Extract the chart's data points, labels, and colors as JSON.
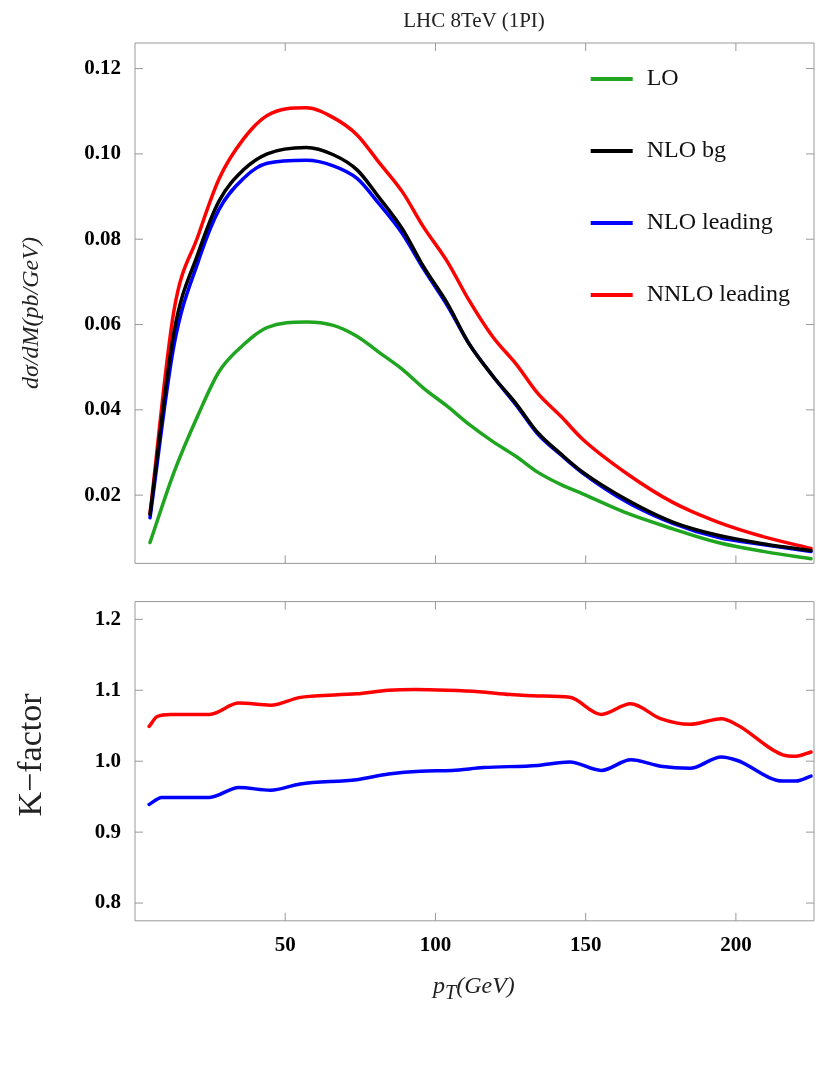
{
  "chart_data": [
    {
      "type": "line",
      "title": "LHC 8TeV (1PI)",
      "ylabel": "dσ/dM(pb/GeV)",
      "xlim": [
        0,
        226
      ],
      "xticks": [
        50,
        100,
        150,
        200
      ],
      "ylim": [
        0.004,
        0.126
      ],
      "yticks": [
        {
          "value": 0.02,
          "label": "0.02"
        },
        {
          "value": 0.04,
          "label": "0.04"
        },
        {
          "value": 0.06,
          "label": "0.06"
        },
        {
          "value": 0.08,
          "label": "0.08"
        },
        {
          "value": 0.1,
          "label": "0.10"
        },
        {
          "value": 0.12,
          "label": "0.12"
        }
      ],
      "tick_labels": "y",
      "legend": "top right",
      "marker": "none",
      "grid": false,
      "series": [
        {
          "name": "LO",
          "color": "#1fa51f",
          "x": [
            5,
            13,
            21,
            28,
            36,
            44,
            57,
            66,
            74,
            81,
            89,
            96,
            104,
            111,
            119,
            127,
            134,
            142,
            149,
            164,
            179,
            194,
            210,
            225
          ],
          "values": [
            0.0089,
            0.0254,
            0.0388,
            0.049,
            0.0552,
            0.0593,
            0.0606,
            0.0598,
            0.0572,
            0.0536,
            0.0495,
            0.0451,
            0.0408,
            0.0367,
            0.0326,
            0.029,
            0.0254,
            0.0224,
            0.0203,
            0.0157,
            0.0121,
            0.0089,
            0.0067,
            0.0051
          ]
        },
        {
          "name": "NLO bg",
          "color": "#000000",
          "x": [
            5,
            13,
            21,
            28,
            36,
            44,
            57,
            66,
            74,
            81,
            89,
            96,
            104,
            111,
            119,
            127,
            134,
            142,
            149,
            164,
            179,
            194,
            210,
            225
          ],
          "values": [
            0.0155,
            0.0583,
            0.0767,
            0.089,
            0.0962,
            0.1,
            0.1015,
            0.0998,
            0.0962,
            0.09,
            0.0824,
            0.0736,
            0.0649,
            0.0557,
            0.048,
            0.0413,
            0.0347,
            0.0295,
            0.0254,
            0.0188,
            0.0137,
            0.0106,
            0.0085,
            0.007
          ]
        },
        {
          "name": "NLO leading",
          "color": "#0000ff",
          "x": [
            5,
            13,
            21,
            28,
            36,
            44,
            57,
            66,
            74,
            81,
            89,
            96,
            104,
            111,
            119,
            127,
            134,
            142,
            149,
            164,
            179,
            194,
            210,
            225
          ],
          "values": [
            0.0147,
            0.0552,
            0.0747,
            0.087,
            0.0942,
            0.0978,
            0.0985,
            0.0972,
            0.0942,
            0.0885,
            0.0813,
            0.0731,
            0.0644,
            0.0557,
            0.048,
            0.041,
            0.0344,
            0.0293,
            0.0252,
            0.0183,
            0.0134,
            0.0101,
            0.0083,
            0.0068
          ]
        },
        {
          "name": "NNLO leading",
          "color": "#ff0000",
          "x": [
            5,
            13,
            21,
            28,
            36,
            44,
            57,
            66,
            74,
            81,
            89,
            96,
            104,
            111,
            119,
            127,
            134,
            142,
            149,
            164,
            179,
            194,
            210,
            225
          ],
          "values": [
            0.0157,
            0.0634,
            0.0808,
            0.0942,
            0.1034,
            0.109,
            0.1108,
            0.1085,
            0.1044,
            0.0982,
            0.0911,
            0.0829,
            0.0747,
            0.0659,
            0.0572,
            0.0506,
            0.0439,
            0.0383,
            0.0331,
            0.0249,
            0.0183,
            0.0137,
            0.0101,
            0.0075
          ]
        }
      ]
    },
    {
      "type": "line",
      "xlabel": "p$_{T}$(GeV)",
      "ylabel": "K−factor",
      "xlim": [
        0,
        226
      ],
      "xticks": [
        50,
        100,
        150,
        200
      ],
      "ylim": [
        0.775,
        1.225
      ],
      "yticks": [
        {
          "value": 0.8,
          "label": "0.8"
        },
        {
          "value": 0.9,
          "label": "0.9"
        },
        {
          "value": 1.0,
          "label": "1.0"
        },
        {
          "value": 1.1,
          "label": "1.1"
        },
        {
          "value": 1.2,
          "label": "1.2"
        }
      ],
      "marker": "none",
      "grid": false,
      "series": [
        {
          "color": "#0000ff",
          "x": [
            4.7,
            8.9,
            24.8,
            34.6,
            45.1,
            55,
            73.8,
            84.4,
            95,
            105.5,
            116,
            134,
            144.7,
            155.2,
            165,
            174.9,
            184.7,
            195.2,
            200.5,
            215.6,
            220,
            225
          ],
          "values": [
            0.939,
            0.949,
            0.949,
            0.963,
            0.959,
            0.968,
            0.974,
            0.982,
            0.986,
            0.987,
            0.991,
            0.994,
            0.999,
            0.987,
            1.002,
            0.993,
            0.99,
            1.006,
            1.001,
            0.972,
            0.972,
            0.979
          ]
        },
        {
          "color": "#ff0000",
          "x": [
            4.7,
            7.4,
            12,
            24.8,
            34.6,
            45.1,
            55,
            73.8,
            84.4,
            93.4,
            104,
            114.5,
            125,
            134,
            144.7,
            155.2,
            165,
            174.9,
            184.7,
            195.2,
            200.5,
            215.6,
            220,
            225
          ],
          "values": [
            1.049,
            1.063,
            1.066,
            1.066,
            1.082,
            1.079,
            1.09,
            1.095,
            1.1,
            1.101,
            1.1,
            1.098,
            1.094,
            1.092,
            1.09,
            1.066,
            1.081,
            1.06,
            1.052,
            1.06,
            1.051,
            1.009,
            1.007,
            1.013
          ]
        }
      ]
    }
  ]
}
